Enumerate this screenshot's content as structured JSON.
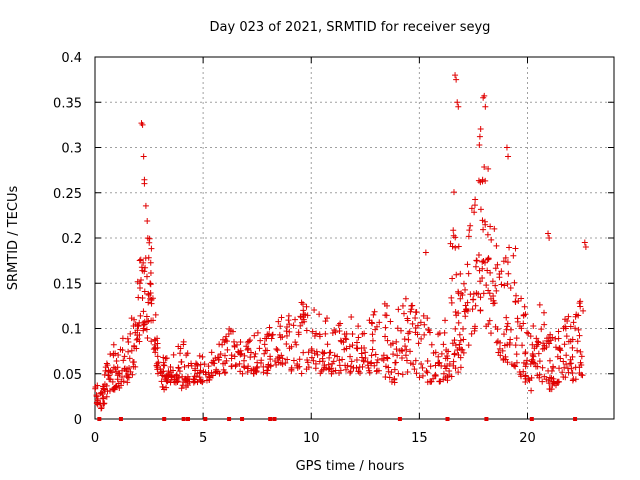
{
  "colors": {
    "series": "#e00000",
    "grid": "#a0a0a0",
    "axis": "#000000"
  },
  "chart_data": {
    "type": "scatter",
    "title": "Day 023 of 2021, SRMTID for receiver seyg",
    "xlabel": "GPS time / hours",
    "ylabel": "SRMTID / TECUs",
    "xlim": [
      0,
      24
    ],
    "ylim": [
      0,
      0.4
    ],
    "xticks": [
      0,
      5,
      10,
      15,
      20
    ],
    "xtick_labels": [
      "0",
      "5",
      "10",
      "15",
      "20"
    ],
    "yticks": [
      0,
      0.05,
      0.1,
      0.15,
      0.2,
      0.25,
      0.3,
      0.35,
      0.4
    ],
    "ytick_labels": [
      "0",
      "0.05",
      "0.1",
      "0.15",
      "0.2",
      "0.25",
      "0.3",
      "0.35",
      "0.4"
    ],
    "grid": true,
    "marker": "plus",
    "series": [
      {
        "name": "SRMTID",
        "envelope": [
          [
            0.0,
            0.02,
            0.05
          ],
          [
            0.3,
            0.01,
            0.04
          ],
          [
            0.5,
            0.02,
            0.06
          ],
          [
            0.8,
            0.03,
            0.09
          ],
          [
            1.0,
            0.03,
            0.08
          ],
          [
            1.3,
            0.04,
            0.09
          ],
          [
            1.6,
            0.04,
            0.11
          ],
          [
            1.9,
            0.06,
            0.14
          ],
          [
            2.1,
            0.09,
            0.2
          ],
          [
            2.3,
            0.1,
            0.27
          ],
          [
            2.5,
            0.08,
            0.21
          ],
          [
            2.7,
            0.08,
            0.17
          ],
          [
            2.9,
            0.05,
            0.1
          ],
          [
            3.2,
            0.03,
            0.07
          ],
          [
            3.5,
            0.04,
            0.07
          ],
          [
            3.8,
            0.04,
            0.08
          ],
          [
            4.1,
            0.03,
            0.09
          ],
          [
            4.4,
            0.04,
            0.07
          ],
          [
            4.8,
            0.04,
            0.07
          ],
          [
            5.2,
            0.04,
            0.08
          ],
          [
            5.6,
            0.05,
            0.08
          ],
          [
            6.0,
            0.05,
            0.09
          ],
          [
            6.4,
            0.06,
            0.11
          ],
          [
            6.8,
            0.05,
            0.09
          ],
          [
            7.2,
            0.05,
            0.09
          ],
          [
            7.6,
            0.05,
            0.1
          ],
          [
            8.0,
            0.05,
            0.1
          ],
          [
            8.4,
            0.06,
            0.11
          ],
          [
            8.8,
            0.06,
            0.12
          ],
          [
            9.2,
            0.05,
            0.12
          ],
          [
            9.6,
            0.05,
            0.13
          ],
          [
            10.0,
            0.06,
            0.13
          ],
          [
            10.4,
            0.05,
            0.12
          ],
          [
            10.8,
            0.05,
            0.11
          ],
          [
            11.2,
            0.05,
            0.11
          ],
          [
            11.6,
            0.05,
            0.11
          ],
          [
            12.0,
            0.05,
            0.12
          ],
          [
            12.4,
            0.05,
            0.12
          ],
          [
            12.8,
            0.05,
            0.12
          ],
          [
            13.2,
            0.05,
            0.13
          ],
          [
            13.6,
            0.04,
            0.13
          ],
          [
            14.0,
            0.04,
            0.12
          ],
          [
            14.4,
            0.05,
            0.14
          ],
          [
            14.8,
            0.05,
            0.13
          ],
          [
            15.2,
            0.04,
            0.12
          ],
          [
            15.6,
            0.04,
            0.11
          ],
          [
            16.0,
            0.04,
            0.1
          ],
          [
            16.3,
            0.04,
            0.14
          ],
          [
            16.6,
            0.05,
            0.26
          ],
          [
            16.8,
            0.05,
            0.2
          ],
          [
            17.0,
            0.06,
            0.16
          ],
          [
            17.3,
            0.08,
            0.22
          ],
          [
            17.6,
            0.1,
            0.27
          ],
          [
            17.9,
            0.12,
            0.35
          ],
          [
            18.1,
            0.1,
            0.3
          ],
          [
            18.4,
            0.08,
            0.23
          ],
          [
            18.7,
            0.07,
            0.18
          ],
          [
            19.0,
            0.06,
            0.2
          ],
          [
            19.3,
            0.06,
            0.21
          ],
          [
            19.6,
            0.05,
            0.17
          ],
          [
            19.9,
            0.04,
            0.13
          ],
          [
            20.2,
            0.03,
            0.11
          ],
          [
            20.5,
            0.04,
            0.14
          ],
          [
            20.8,
            0.04,
            0.12
          ],
          [
            21.1,
            0.03,
            0.09
          ],
          [
            21.4,
            0.04,
            0.1
          ],
          [
            21.7,
            0.04,
            0.12
          ],
          [
            22.0,
            0.04,
            0.11
          ],
          [
            22.3,
            0.04,
            0.12
          ],
          [
            22.6,
            0.05,
            0.15
          ]
        ],
        "outliers": [
          [
            2.15,
            0.327
          ],
          [
            2.2,
            0.325
          ],
          [
            2.25,
            0.29
          ],
          [
            16.65,
            0.38
          ],
          [
            16.7,
            0.375
          ],
          [
            16.75,
            0.35
          ],
          [
            16.8,
            0.345
          ],
          [
            17.95,
            0.355
          ],
          [
            18.0,
            0.357
          ],
          [
            18.05,
            0.345
          ],
          [
            19.05,
            0.3
          ],
          [
            19.1,
            0.29
          ],
          [
            15.3,
            0.184
          ],
          [
            22.65,
            0.195
          ],
          [
            22.7,
            0.19
          ],
          [
            20.95,
            0.205
          ],
          [
            21.0,
            0.2
          ],
          [
            17.8,
            0.312
          ]
        ],
        "zero_markers": [
          0.2,
          1.2,
          3.2,
          4.1,
          4.3,
          5.1,
          6.2,
          6.8,
          8.1,
          8.3,
          14.1,
          16.3,
          18.1,
          20.2,
          22.2
        ]
      }
    ]
  }
}
